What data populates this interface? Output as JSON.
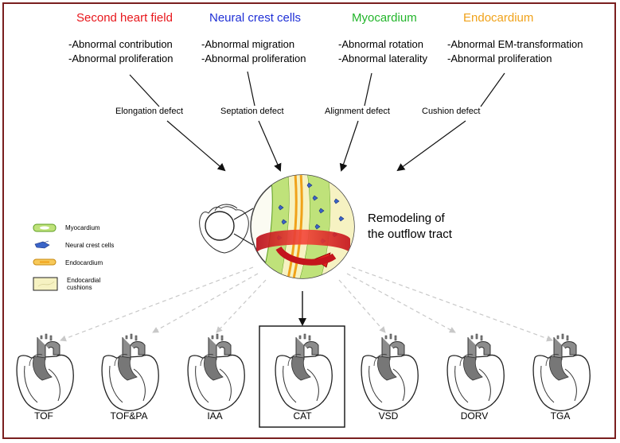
{
  "columns": [
    {
      "title": "Second heart field",
      "color": "#e8161b",
      "bullets": [
        "-Abnormal contribution",
        "-Abnormal proliferation"
      ],
      "defect": "Elongation defect"
    },
    {
      "title": "Neural crest cells",
      "color": "#1e2fd6",
      "bullets": [
        "-Abnormal migration",
        "-Abnormal proliferation"
      ],
      "defect": "Septation defect"
    },
    {
      "title": "Myocardium",
      "color": "#22b52a",
      "bullets": [
        "-Abnormal rotation",
        "-Abnormal laterality"
      ],
      "defect": "Alignment defect"
    },
    {
      "title": "Endocardium",
      "color": "#f0a21a",
      "bullets": [
        "-Abnormal EM-transformation",
        "-Abnormal proliferation"
      ],
      "defect": "Cushion defect"
    }
  ],
  "center": {
    "line1": "Remodeling of",
    "line2": "the outflow tract"
  },
  "legend": [
    {
      "label": "Myocardium",
      "swatch": "myocardium-swatch"
    },
    {
      "label": "Neural crest cells",
      "swatch": "neural-crest-swatch"
    },
    {
      "label": "Endocardium",
      "swatch": "endocardium-swatch"
    },
    {
      "label": "Endocardial cushions",
      "swatch": "cushion-swatch"
    }
  ],
  "hearts": [
    {
      "label": "TOF",
      "highlighted": false
    },
    {
      "label": "TOF&PA",
      "highlighted": false
    },
    {
      "label": "IAA",
      "highlighted": false
    },
    {
      "label": "CAT",
      "highlighted": true
    },
    {
      "label": "VSD",
      "highlighted": false
    },
    {
      "label": "DORV",
      "highlighted": false
    },
    {
      "label": "TGA",
      "highlighted": false
    }
  ]
}
